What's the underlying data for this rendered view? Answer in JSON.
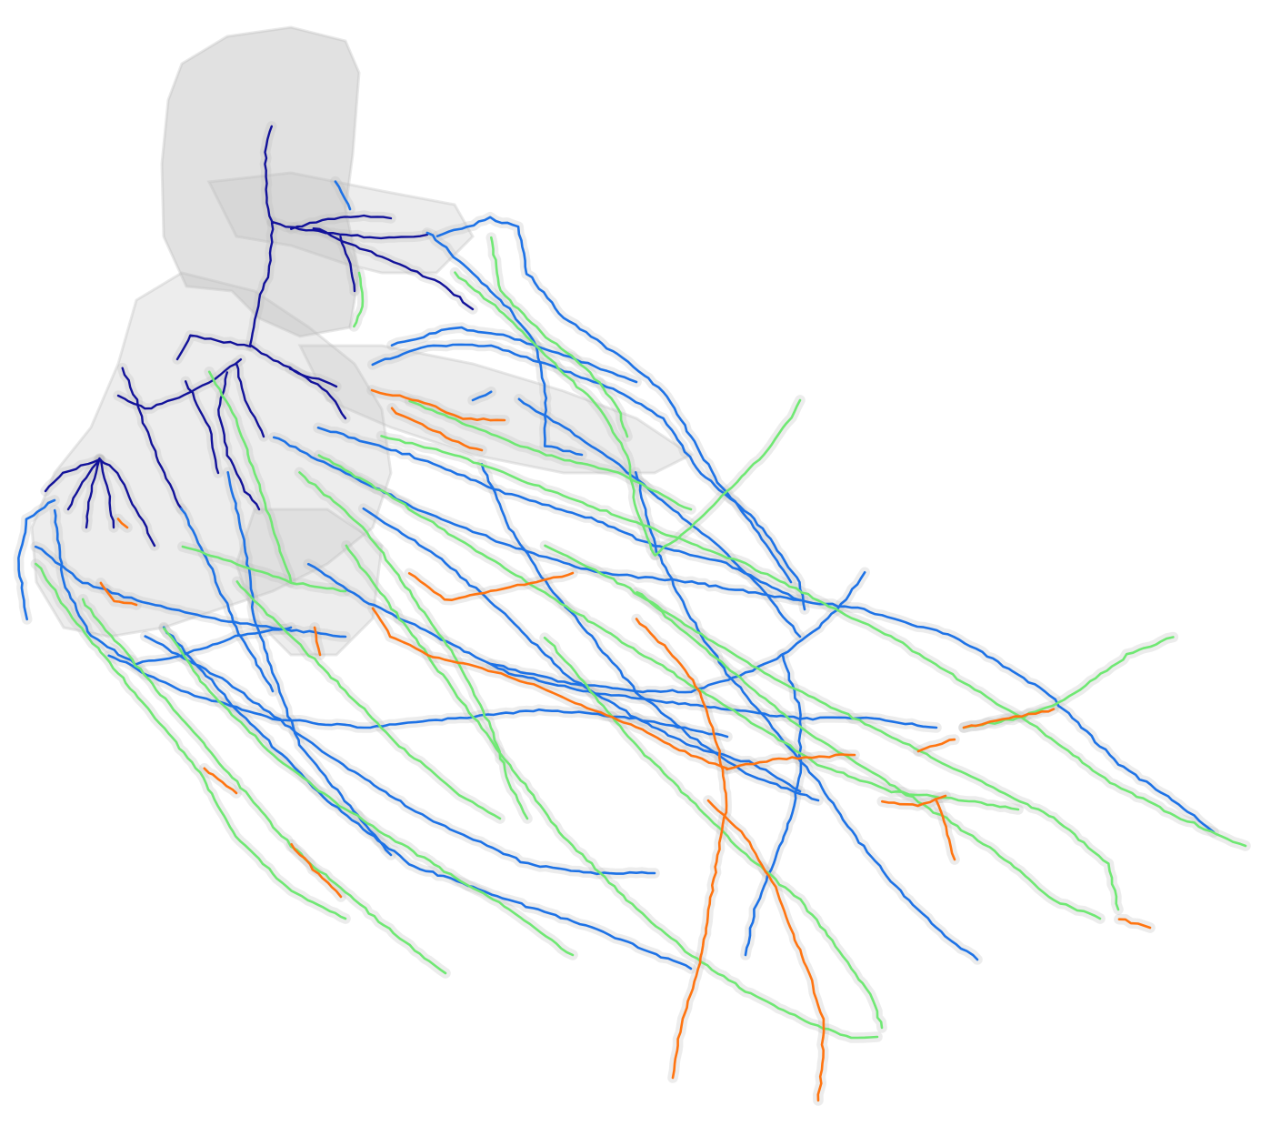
{
  "image": {
    "description_free": true,
    "background_color": "#ffffff"
  },
  "palette": {
    "volume_gray": "#bdbdbd",
    "trunk_dark_blue": "#12129a",
    "branch_blue": "#1d72e6",
    "branch_green": "#6fe873",
    "branch_orange": "#ff7410"
  },
  "trace_groups": [
    {
      "key": "dark_blue",
      "color": "#12129a"
    },
    {
      "key": "blue",
      "color": "#1d72e6"
    },
    {
      "key": "green",
      "color": "#6fe873"
    },
    {
      "key": "orange",
      "color": "#ff7410"
    }
  ]
}
